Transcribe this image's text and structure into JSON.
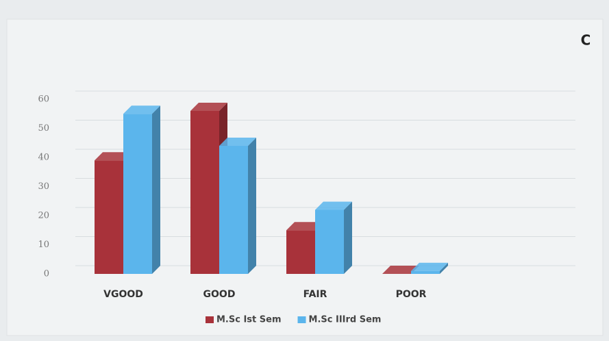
{
  "chart_data": {
    "type": "bar3d",
    "annotation": "C",
    "categories": [
      "VGOOD",
      "GOOD",
      "FAIR",
      "POOR"
    ],
    "series": [
      {
        "name": "M.Sc Ist Sem",
        "color": "#a8323a",
        "values": [
          39,
          56,
          15,
          0
        ]
      },
      {
        "name": "M.Sc IIIrd Sem",
        "color": "#5bb5ec",
        "values": [
          55,
          44,
          22,
          1
        ]
      }
    ],
    "ylim": [
      0,
      60
    ],
    "yticks": [
      0,
      10,
      20,
      30,
      40,
      50,
      60
    ],
    "grid": true,
    "legend": "bottom"
  }
}
